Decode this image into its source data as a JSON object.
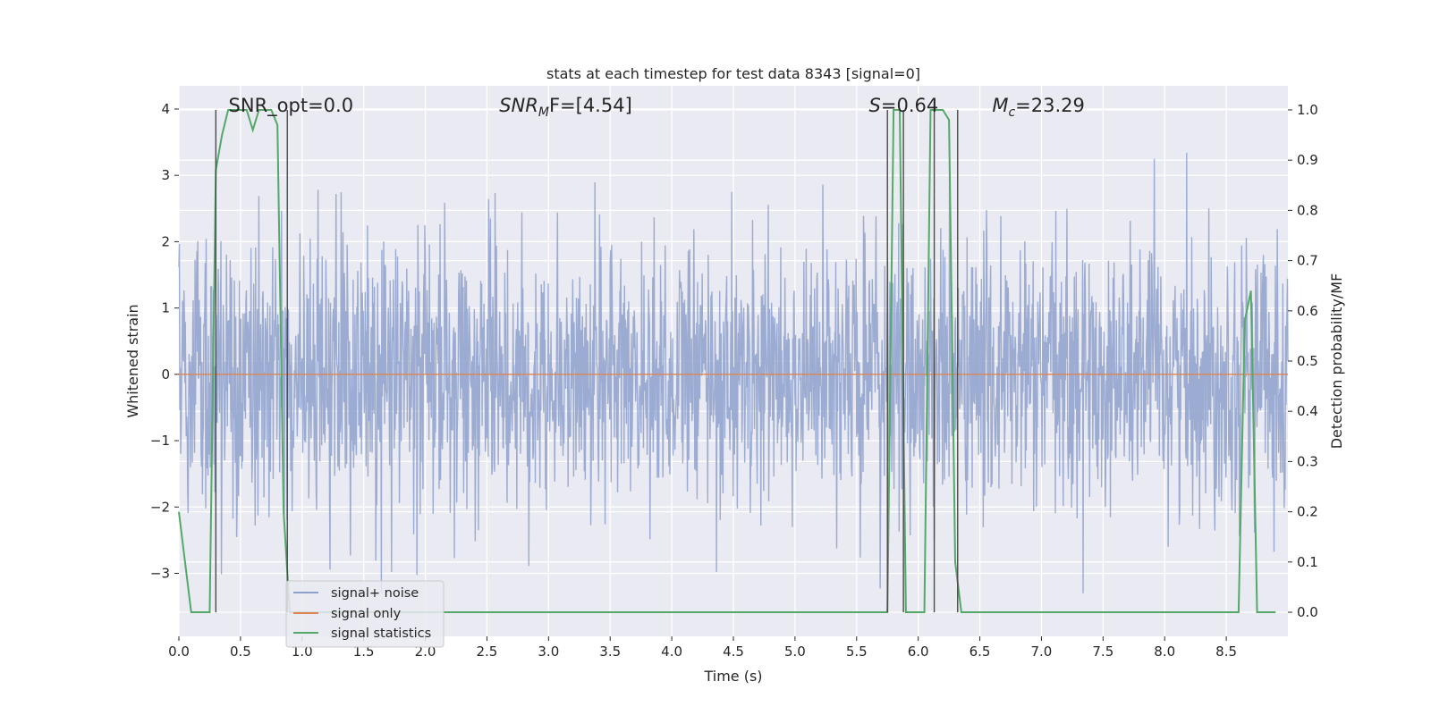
{
  "chart_data": {
    "type": "line",
    "title": "stats at each timestep for test data 8343 [signal=0]",
    "xlabel": "Time (s)",
    "ylabel_left": "Whitened strain",
    "ylabel_right": "Detection probability/MF",
    "xlim": [
      0,
      9.0
    ],
    "ylim_left": [
      -3.95,
      4.35
    ],
    "ylim_right": [
      -0.048,
      1.048
    ],
    "x_ticks": [
      0,
      0.5,
      1.0,
      1.5,
      2.0,
      2.5,
      3.0,
      3.5,
      4.0,
      4.5,
      5.0,
      5.5,
      6.0,
      6.5,
      7.0,
      7.5,
      8.0,
      8.5
    ],
    "x_tick_labels": [
      "0.0",
      "0.5",
      "1.0",
      "1.5",
      "2.0",
      "2.5",
      "3.0",
      "3.5",
      "4.0",
      "4.5",
      "5.0",
      "5.5",
      "6.0",
      "6.5",
      "7.0",
      "7.5",
      "8.0",
      "8.5"
    ],
    "y_left_ticks": [
      -3,
      -2,
      -1,
      0,
      1,
      2,
      3,
      4
    ],
    "y_left_tick_labels": [
      "−3",
      "−2",
      "−1",
      "0",
      "1",
      "2",
      "3",
      "4"
    ],
    "y_right_ticks": [
      0.0,
      0.1,
      0.2,
      0.3,
      0.4,
      0.5,
      0.6,
      0.7,
      0.8,
      0.9,
      1.0
    ],
    "y_right_tick_labels": [
      "0.0",
      "0.1",
      "0.2",
      "0.3",
      "0.4",
      "0.5",
      "0.6",
      "0.7",
      "0.8",
      "0.9",
      "1.0"
    ],
    "grid": true,
    "legend_position": "lower-left",
    "annotations": [
      {
        "text": "SNR_opt=0.0",
        "x": 0.2,
        "y": 4.0
      },
      {
        "base": "SNR",
        "sub": "M",
        "rest": "F=[4.54]",
        "x": 2.6,
        "y": 4.0
      },
      {
        "italic": "S",
        "rest": "=0.64",
        "x": 5.6,
        "y": 4.0
      },
      {
        "base": "M",
        "sub": "c",
        "rest": "=23.29",
        "x": 6.6,
        "y": 4.0
      }
    ],
    "series": [
      {
        "name": "signal+ noise",
        "axis": "left",
        "color": "#8da0cb",
        "style": "noise",
        "x_range": [
          0,
          9.0
        ],
        "amplitude_std": 1.0,
        "note_samples": 2048
      },
      {
        "name": "signal only",
        "axis": "left",
        "color": "#dd8452",
        "x": [
          0,
          9.0
        ],
        "y": [
          0,
          0
        ]
      },
      {
        "name": "signal statistics",
        "axis": "right",
        "color": "#55a868",
        "x": [
          0.0,
          0.05,
          0.1,
          0.15,
          0.2,
          0.25,
          0.3,
          0.35,
          0.4,
          0.45,
          0.5,
          0.55,
          0.6,
          0.65,
          0.7,
          0.75,
          0.8,
          0.85,
          0.9,
          0.95,
          1.0,
          1.05,
          5.7,
          5.75,
          5.8,
          5.85,
          5.9,
          5.95,
          6.0,
          6.05,
          6.1,
          6.15,
          6.2,
          6.25,
          6.3,
          6.35,
          6.4,
          6.45,
          6.5,
          8.6,
          8.65,
          8.7,
          8.75,
          8.8,
          8.85,
          8.9
        ],
        "y": [
          0.2,
          0.1,
          0.0,
          0.0,
          0.0,
          0.0,
          0.88,
          0.95,
          1.0,
          1.0,
          1.0,
          1.0,
          0.96,
          1.0,
          1.0,
          1.0,
          0.97,
          0.2,
          0.0,
          0.0,
          0.0,
          0.0,
          0.0,
          0.0,
          1.0,
          1.0,
          0.0,
          0.0,
          0.0,
          0.0,
          1.0,
          1.0,
          1.0,
          0.98,
          0.1,
          0.0,
          0.0,
          0.0,
          0.0,
          0.0,
          0.58,
          0.64,
          0.0,
          0.0,
          0.0,
          0.0
        ]
      }
    ],
    "vertical_lines": [
      0.3,
      0.88,
      5.75,
      5.88,
      6.13,
      6.32
    ],
    "vertical_line_color": "#4a4a4a"
  }
}
